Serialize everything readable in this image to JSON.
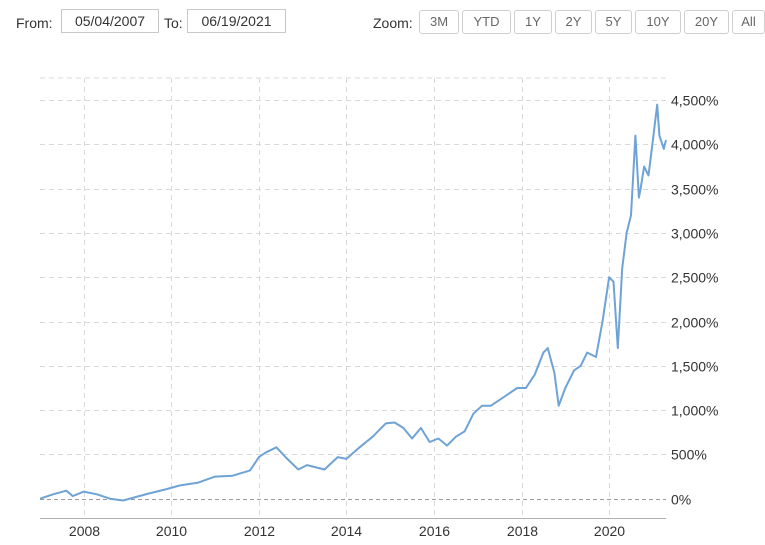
{
  "toolbar": {
    "from_label": "From:",
    "from_value": "05/04/2007",
    "to_label": "To:",
    "to_value": "06/19/2021",
    "zoom_label": "Zoom:",
    "zoom_buttons": [
      "3M",
      "YTD",
      "1Y",
      "2Y",
      "5Y",
      "10Y",
      "20Y",
      "All"
    ]
  },
  "colors": {
    "line": "#6fa3d6",
    "grid": "#d9d9d9",
    "axis": "#b0b0b0"
  },
  "chart_data": {
    "type": "line",
    "title": "",
    "xlabel": "",
    "ylabel": "",
    "x_range": [
      2007.0,
      2021.3
    ],
    "ylim": [
      -500,
      4750
    ],
    "y_ticks": [
      0,
      500,
      1000,
      1500,
      2000,
      2500,
      3000,
      3500,
      4000,
      4500
    ],
    "y_tick_labels": [
      "0%",
      "500%",
      "1,000%",
      "1,500%",
      "2,000%",
      "2,500%",
      "3,000%",
      "3,500%",
      "4,000%",
      "4,500%"
    ],
    "x_ticks": [
      2008,
      2010,
      2012,
      2014,
      2016,
      2018,
      2020
    ],
    "x_tick_labels": [
      "2008",
      "2010",
      "2012",
      "2014",
      "2016",
      "2018",
      "2020"
    ],
    "grid": true,
    "series": [
      {
        "name": "",
        "x": [
          2007.0,
          2007.3,
          2007.6,
          2007.75,
          2008.0,
          2008.3,
          2008.6,
          2008.9,
          2009.2,
          2009.5,
          2009.9,
          2010.2,
          2010.6,
          2011.0,
          2011.4,
          2011.8,
          2012.0,
          2012.15,
          2012.4,
          2012.65,
          2012.9,
          2013.1,
          2013.5,
          2013.8,
          2014.0,
          2014.3,
          2014.6,
          2014.9,
          2015.1,
          2015.3,
          2015.5,
          2015.7,
          2015.9,
          2016.1,
          2016.3,
          2016.5,
          2016.7,
          2016.9,
          2017.1,
          2017.3,
          2017.6,
          2017.9,
          2018.1,
          2018.3,
          2018.5,
          2018.6,
          2018.75,
          2018.85,
          2019.0,
          2019.2,
          2019.35,
          2019.5,
          2019.7,
          2019.85,
          2020.0,
          2020.1,
          2020.2,
          2020.3,
          2020.4,
          2020.5,
          2020.6,
          2020.68,
          2020.72,
          2020.8,
          2020.9,
          2021.0,
          2021.1,
          2021.15,
          2021.25,
          2021.3
        ],
        "values": [
          0,
          50,
          90,
          30,
          80,
          50,
          0,
          -20,
          20,
          60,
          110,
          150,
          180,
          250,
          260,
          320,
          470,
          520,
          580,
          450,
          330,
          380,
          330,
          470,
          450,
          580,
          700,
          850,
          860,
          800,
          680,
          800,
          640,
          680,
          600,
          700,
          760,
          960,
          1050,
          1050,
          1150,
          1250,
          1250,
          1400,
          1650,
          1700,
          1420,
          1050,
          1250,
          1450,
          1500,
          1650,
          1600,
          2000,
          2500,
          2450,
          1700,
          2600,
          3000,
          3200,
          4100,
          3400,
          3500,
          3750,
          3650,
          4050,
          4450,
          4100,
          3950,
          4050
        ]
      }
    ]
  }
}
